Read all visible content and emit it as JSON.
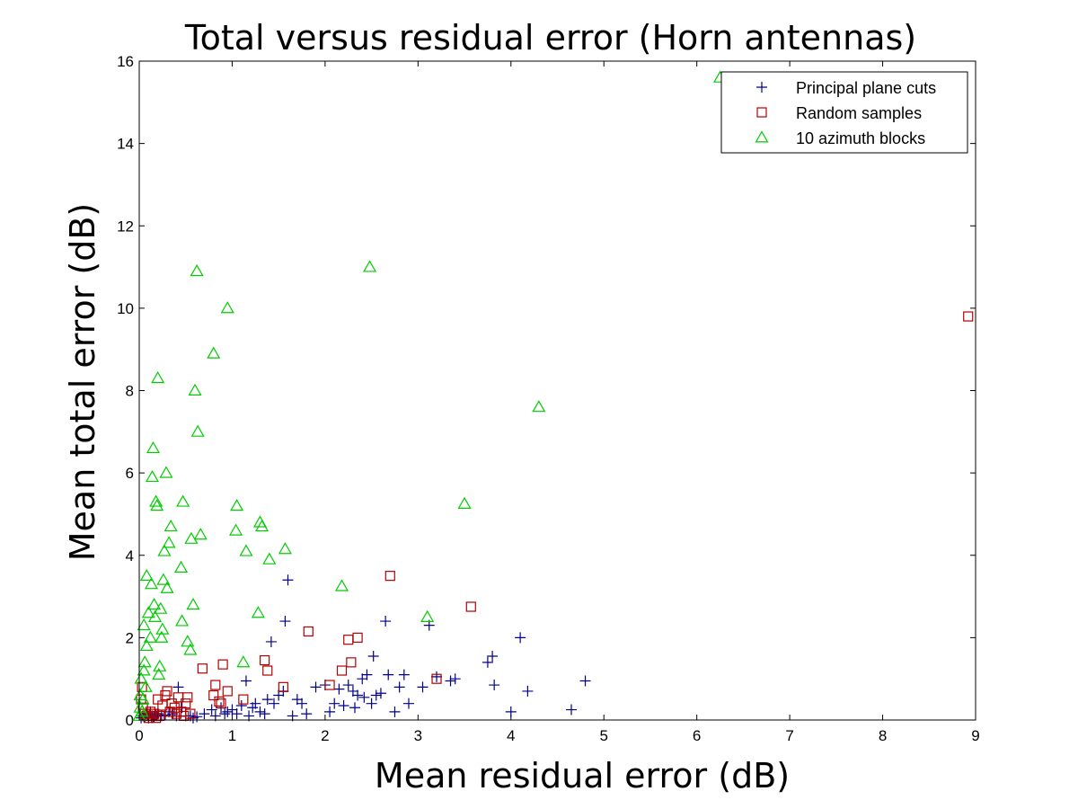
{
  "chart_data": {
    "type": "scatter",
    "title": "Total versus residual error (Horn antennas)",
    "xlabel": "Mean residual error (dB)",
    "ylabel": "Mean total error (dB)",
    "xlim": [
      0,
      9
    ],
    "ylim": [
      0,
      16
    ],
    "xticks": [
      0,
      1,
      2,
      3,
      4,
      5,
      6,
      7,
      8,
      9
    ],
    "yticks": [
      0,
      2,
      4,
      6,
      8,
      10,
      12,
      14,
      16
    ],
    "grid": false,
    "legend_position": "top-right",
    "colors": {
      "principal": "#00008b",
      "random": "#b30000",
      "azimuth": "#00cc00",
      "axes": "#000000"
    },
    "series": [
      {
        "name": "Principal plane cuts",
        "marker": "plus",
        "points": [
          [
            0.02,
            0.05
          ],
          [
            0.04,
            0.1
          ],
          [
            0.06,
            0.08
          ],
          [
            0.08,
            0.15
          ],
          [
            0.1,
            0.05
          ],
          [
            0.12,
            0.2
          ],
          [
            0.14,
            0.1
          ],
          [
            0.16,
            0.08
          ],
          [
            0.18,
            0.12
          ],
          [
            0.2,
            0.15
          ],
          [
            0.24,
            0.1
          ],
          [
            0.28,
            0.12
          ],
          [
            0.32,
            0.2
          ],
          [
            0.36,
            0.15
          ],
          [
            0.4,
            0.1
          ],
          [
            0.42,
            0.8
          ],
          [
            0.46,
            0.3
          ],
          [
            0.5,
            0.1
          ],
          [
            0.55,
            0.1
          ],
          [
            0.58,
            0.05
          ],
          [
            0.62,
            0.08
          ],
          [
            0.7,
            0.15
          ],
          [
            0.78,
            0.25
          ],
          [
            0.82,
            0.1
          ],
          [
            0.88,
            0.3
          ],
          [
            0.92,
            0.15
          ],
          [
            0.95,
            0.2
          ],
          [
            1.0,
            0.25
          ],
          [
            1.05,
            0.15
          ],
          [
            1.1,
            0.35
          ],
          [
            1.15,
            0.95
          ],
          [
            1.18,
            0.1
          ],
          [
            1.22,
            0.3
          ],
          [
            1.25,
            0.4
          ],
          [
            1.3,
            0.2
          ],
          [
            1.35,
            0.15
          ],
          [
            1.38,
            0.5
          ],
          [
            1.42,
            1.9
          ],
          [
            1.45,
            0.4
          ],
          [
            1.5,
            0.6
          ],
          [
            1.55,
            0.7
          ],
          [
            1.57,
            2.4
          ],
          [
            1.6,
            3.4
          ],
          [
            1.65,
            0.1
          ],
          [
            1.7,
            0.5
          ],
          [
            1.75,
            0.4
          ],
          [
            1.8,
            0.15
          ],
          [
            1.9,
            0.8
          ],
          [
            2.0,
            0.85
          ],
          [
            2.05,
            0.2
          ],
          [
            2.1,
            0.4
          ],
          [
            2.15,
            0.75
          ],
          [
            2.2,
            0.35
          ],
          [
            2.25,
            0.85
          ],
          [
            2.3,
            0.7
          ],
          [
            2.32,
            0.3
          ],
          [
            2.35,
            0.6
          ],
          [
            2.4,
            1.0
          ],
          [
            2.42,
            0.55
          ],
          [
            2.45,
            1.1
          ],
          [
            2.5,
            0.4
          ],
          [
            2.52,
            1.55
          ],
          [
            2.55,
            0.6
          ],
          [
            2.6,
            0.65
          ],
          [
            2.65,
            2.4
          ],
          [
            2.68,
            1.1
          ],
          [
            2.75,
            0.2
          ],
          [
            2.8,
            0.8
          ],
          [
            2.85,
            1.1
          ],
          [
            2.9,
            0.4
          ],
          [
            3.05,
            0.8
          ],
          [
            3.12,
            2.3
          ],
          [
            3.2,
            1.05
          ],
          [
            3.35,
            0.95
          ],
          [
            3.4,
            1.0
          ],
          [
            3.75,
            1.4
          ],
          [
            3.8,
            1.55
          ],
          [
            3.82,
            0.85
          ],
          [
            4.0,
            0.2
          ],
          [
            4.1,
            2.0
          ],
          [
            4.18,
            0.7
          ],
          [
            4.65,
            0.25
          ],
          [
            4.8,
            0.95
          ]
        ]
      },
      {
        "name": "Random samples",
        "marker": "square",
        "points": [
          [
            0.02,
            0.5
          ],
          [
            0.03,
            0.8
          ],
          [
            0.04,
            0.3
          ],
          [
            0.06,
            0.15
          ],
          [
            0.08,
            0.1
          ],
          [
            0.1,
            0.05
          ],
          [
            0.12,
            0.2
          ],
          [
            0.14,
            0.1
          ],
          [
            0.16,
            0.15
          ],
          [
            0.18,
            0.05
          ],
          [
            0.2,
            0.5
          ],
          [
            0.22,
            0.1
          ],
          [
            0.25,
            0.35
          ],
          [
            0.28,
            0.6
          ],
          [
            0.3,
            0.7
          ],
          [
            0.33,
            0.2
          ],
          [
            0.35,
            0.4
          ],
          [
            0.38,
            0.3
          ],
          [
            0.4,
            0.15
          ],
          [
            0.42,
            0.55
          ],
          [
            0.45,
            0.2
          ],
          [
            0.48,
            0.1
          ],
          [
            0.5,
            0.4
          ],
          [
            0.52,
            0.55
          ],
          [
            0.55,
            0.15
          ],
          [
            0.68,
            1.25
          ],
          [
            0.8,
            0.6
          ],
          [
            0.82,
            0.85
          ],
          [
            0.86,
            0.45
          ],
          [
            0.88,
            0.4
          ],
          [
            0.9,
            1.35
          ],
          [
            0.95,
            0.7
          ],
          [
            1.12,
            0.5
          ],
          [
            1.35,
            1.45
          ],
          [
            1.38,
            1.2
          ],
          [
            1.55,
            0.8
          ],
          [
            1.82,
            2.15
          ],
          [
            2.05,
            0.85
          ],
          [
            2.18,
            1.2
          ],
          [
            2.25,
            1.95
          ],
          [
            2.28,
            1.4
          ],
          [
            2.35,
            2.0
          ],
          [
            2.7,
            3.5
          ],
          [
            3.2,
            1.0
          ],
          [
            3.57,
            2.75
          ],
          [
            8.92,
            9.8
          ]
        ]
      },
      {
        "name": "10 azimuth blocks",
        "marker": "triangle",
        "points": [
          [
            0.0,
            0.1
          ],
          [
            0.01,
            0.3
          ],
          [
            0.01,
            0.6
          ],
          [
            0.02,
            1.0
          ],
          [
            0.03,
            0.2
          ],
          [
            0.04,
            0.5
          ],
          [
            0.05,
            1.2
          ],
          [
            0.05,
            2.3
          ],
          [
            0.06,
            1.4
          ],
          [
            0.07,
            0.8
          ],
          [
            0.08,
            1.8
          ],
          [
            0.08,
            3.5
          ],
          [
            0.1,
            2.6
          ],
          [
            0.12,
            2.0
          ],
          [
            0.13,
            3.3
          ],
          [
            0.14,
            5.9
          ],
          [
            0.15,
            6.6
          ],
          [
            0.16,
            2.8
          ],
          [
            0.17,
            2.5
          ],
          [
            0.18,
            5.3
          ],
          [
            0.19,
            5.2
          ],
          [
            0.2,
            8.3
          ],
          [
            0.21,
            1.1
          ],
          [
            0.22,
            1.3
          ],
          [
            0.23,
            2.7
          ],
          [
            0.24,
            2.0
          ],
          [
            0.25,
            2.2
          ],
          [
            0.26,
            3.4
          ],
          [
            0.27,
            4.1
          ],
          [
            0.29,
            6.0
          ],
          [
            0.3,
            3.2
          ],
          [
            0.32,
            4.3
          ],
          [
            0.34,
            4.7
          ],
          [
            0.45,
            3.7
          ],
          [
            0.46,
            2.4
          ],
          [
            0.47,
            5.3
          ],
          [
            0.52,
            1.9
          ],
          [
            0.55,
            1.7
          ],
          [
            0.56,
            4.4
          ],
          [
            0.58,
            2.8
          ],
          [
            0.6,
            8.0
          ],
          [
            0.62,
            10.9
          ],
          [
            0.63,
            7.0
          ],
          [
            0.66,
            4.5
          ],
          [
            0.95,
            10.0
          ],
          [
            0.8,
            8.9
          ],
          [
            1.05,
            5.2
          ],
          [
            1.04,
            4.6
          ],
          [
            1.12,
            1.4
          ],
          [
            1.15,
            4.1
          ],
          [
            1.28,
            2.6
          ],
          [
            1.3,
            4.8
          ],
          [
            1.32,
            4.7
          ],
          [
            1.4,
            3.9
          ],
          [
            1.57,
            4.15
          ],
          [
            2.18,
            3.25
          ],
          [
            2.48,
            11.0
          ],
          [
            3.1,
            2.5
          ],
          [
            3.5,
            5.25
          ],
          [
            4.3,
            7.6
          ],
          [
            6.25,
            15.6
          ]
        ]
      }
    ]
  }
}
